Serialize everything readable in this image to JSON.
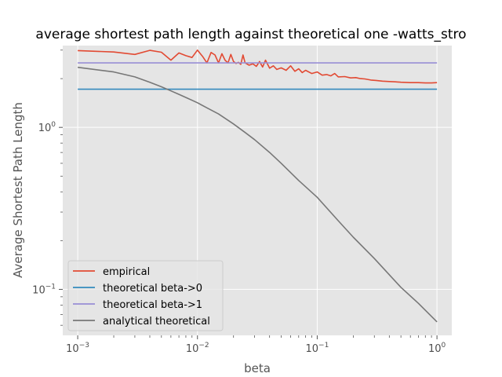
{
  "chart_data": {
    "type": "line",
    "title": "average shortest path length against theoretical one -watts_stro",
    "xlabel": "beta",
    "ylabel": "Average Shortest Path Length",
    "xscale": "log",
    "yscale": "log",
    "xlim": [
      0.00075,
      1.33
    ],
    "ylim": [
      0.052,
      3.2
    ],
    "grid": true,
    "legend_position": "lower-left",
    "x_ticks": [
      {
        "value": 0.001,
        "base": "10",
        "exp": "−3"
      },
      {
        "value": 0.01,
        "base": "10",
        "exp": "−2"
      },
      {
        "value": 0.1,
        "base": "10",
        "exp": "−1"
      },
      {
        "value": 1,
        "base": "10",
        "exp": "0"
      }
    ],
    "y_ticks": [
      {
        "value": 0.1,
        "base": "10",
        "exp": "−1"
      },
      {
        "value": 1,
        "base": "10",
        "exp": "0"
      }
    ],
    "series": [
      {
        "name": "empirical",
        "color": "#E24A33",
        "x": [
          0.001,
          0.002,
          0.003,
          0.004,
          0.005,
          0.006,
          0.007,
          0.008,
          0.009,
          0.01,
          0.011,
          0.012,
          0.013,
          0.014,
          0.015,
          0.016,
          0.017,
          0.018,
          0.019,
          0.02,
          0.021,
          0.022,
          0.023,
          0.024,
          0.025,
          0.027,
          0.029,
          0.031,
          0.033,
          0.035,
          0.037,
          0.04,
          0.043,
          0.046,
          0.05,
          0.055,
          0.06,
          0.065,
          0.07,
          0.075,
          0.08,
          0.09,
          0.1,
          0.11,
          0.12,
          0.13,
          0.14,
          0.15,
          0.17,
          0.19,
          0.21,
          0.23,
          0.25,
          0.28,
          0.31,
          0.35,
          0.4,
          0.45,
          0.5,
          0.6,
          0.7,
          0.8,
          0.9,
          1.0
        ],
        "y": [
          2.98,
          2.92,
          2.82,
          2.99,
          2.91,
          2.6,
          2.88,
          2.77,
          2.7,
          3.0,
          2.75,
          2.5,
          2.9,
          2.8,
          2.5,
          2.85,
          2.6,
          2.5,
          2.82,
          2.55,
          2.48,
          2.52,
          2.45,
          2.8,
          2.5,
          2.42,
          2.47,
          2.38,
          2.55,
          2.36,
          2.6,
          2.32,
          2.4,
          2.28,
          2.33,
          2.25,
          2.4,
          2.22,
          2.3,
          2.18,
          2.25,
          2.15,
          2.2,
          2.1,
          2.12,
          2.08,
          2.15,
          2.05,
          2.06,
          2.02,
          2.03,
          2.0,
          1.99,
          1.96,
          1.95,
          1.93,
          1.92,
          1.91,
          1.9,
          1.89,
          1.89,
          1.88,
          1.88,
          1.89
        ]
      },
      {
        "name": "theoretical beta->0",
        "color": "#348ABD",
        "x": [
          0.001,
          1.0
        ],
        "y": [
          1.72,
          1.72
        ]
      },
      {
        "name": "theoretical beta->1",
        "color": "#988ED5",
        "x": [
          0.001,
          1.0
        ],
        "y": [
          2.5,
          2.5
        ]
      },
      {
        "name": "analytical theoretical",
        "color": "#777777",
        "x": [
          0.001,
          0.002,
          0.003,
          0.004,
          0.005,
          0.006,
          0.007,
          0.008,
          0.01,
          0.012,
          0.015,
          0.02,
          0.025,
          0.03,
          0.04,
          0.05,
          0.07,
          0.1,
          0.15,
          0.2,
          0.3,
          0.5,
          0.7,
          1.0
        ],
        "y": [
          2.35,
          2.2,
          2.05,
          1.9,
          1.78,
          1.68,
          1.6,
          1.53,
          1.42,
          1.32,
          1.21,
          1.05,
          0.93,
          0.84,
          0.7,
          0.6,
          0.47,
          0.37,
          0.265,
          0.21,
          0.155,
          0.103,
          0.082,
          0.063
        ]
      }
    ]
  }
}
